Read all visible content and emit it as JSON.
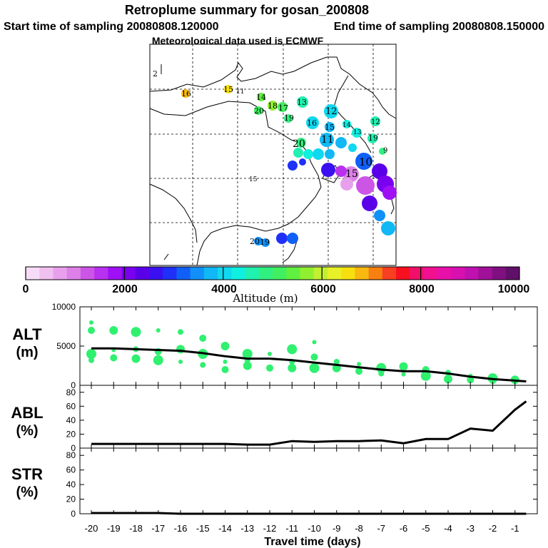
{
  "header": {
    "title": "Retroplume summary for gosan_200808",
    "start_label": "Start time of sampling 20080808.120000",
    "end_label": "End time of sampling 20080808.150000",
    "met_label": "Meteorological data used is ECMWF"
  },
  "colorbar": {
    "label": "Altitude (m)",
    "tick_labels": [
      "0",
      "2000",
      "4000",
      "6000",
      "8000",
      "10000"
    ],
    "min": 0,
    "max": 10000,
    "colors": [
      "#f7dcf7",
      "#f0c0f0",
      "#e8a0ec",
      "#dd80e8",
      "#cc55e6",
      "#b830f0",
      "#9f10f5",
      "#7a00f0",
      "#5a00e8",
      "#3a10f0",
      "#1f30f8",
      "#1060f8",
      "#1090f8",
      "#10b8f5",
      "#10d8f0",
      "#10f0e0",
      "#20f0b0",
      "#30f080",
      "#40f060",
      "#60f040",
      "#90f030",
      "#c0f030",
      "#e8f028",
      "#f8e010",
      "#f8b810",
      "#f88010",
      "#f84020",
      "#f81020",
      "#f0106a",
      "#f01090",
      "#e810a8",
      "#d810b0",
      "#c010b0",
      "#a01098",
      "#801080",
      "#601068"
    ]
  },
  "map_labels": [
    "2",
    "16",
    "15",
    "11",
    "14",
    "13",
    "20",
    "18",
    "17",
    "19",
    "12",
    "16",
    "15",
    "14",
    "13",
    "12",
    "20",
    "11",
    "10",
    "19",
    "9",
    "15",
    "20",
    "19",
    "15"
  ],
  "chart_data": [
    {
      "type": "scatter",
      "panel": "ALT",
      "ylabel": "ALT (m)",
      "ylim": [
        0,
        10000
      ],
      "yticks": [
        0,
        5000,
        10000
      ],
      "series": [
        {
          "name": "mean altitude",
          "x": [
            -20,
            -19,
            -18,
            -17,
            -16,
            -15,
            -14,
            -13,
            -12,
            -11,
            -10,
            -9,
            -8,
            -7,
            -6,
            -5,
            -4,
            -3,
            -2,
            -1,
            -0.5
          ],
          "y": [
            4700,
            4700,
            4600,
            4500,
            4400,
            4100,
            3700,
            3400,
            3400,
            3200,
            2900,
            2600,
            2300,
            2000,
            1800,
            1800,
            1500,
            1100,
            800,
            600,
            500
          ]
        },
        {
          "name": "particle altitudes",
          "x": [
            -20,
            -20,
            -20,
            -20,
            -19,
            -19,
            -19,
            -18,
            -18,
            -18,
            -17,
            -17,
            -17,
            -16,
            -16,
            -16,
            -15,
            -15,
            -15,
            -14,
            -14,
            -14,
            -13,
            -13,
            -13,
            -12,
            -12,
            -11,
            -11,
            -11,
            -10,
            -10,
            -10,
            -9,
            -9,
            -8,
            -8,
            -7,
            -7,
            -6,
            -6,
            -5,
            -5,
            -4,
            -4,
            -3,
            -3,
            -2,
            -2,
            -1,
            -1
          ],
          "y": [
            8000,
            7000,
            4000,
            3200,
            7000,
            4500,
            3500,
            6800,
            4600,
            3400,
            7000,
            4300,
            3200,
            6800,
            4600,
            3000,
            6000,
            4000,
            2600,
            5000,
            3000,
            2000,
            4000,
            3200,
            2500,
            4000,
            2200,
            4600,
            3000,
            2200,
            5500,
            3600,
            2200,
            3000,
            2200,
            2700,
            1800,
            2200,
            1500,
            2400,
            1400,
            2000,
            1200,
            1600,
            800,
            1200,
            700,
            900,
            500,
            700,
            400
          ]
        }
      ]
    },
    {
      "type": "line",
      "panel": "ABL",
      "ylabel": "ABL (%)",
      "ylim": [
        0,
        90
      ],
      "yticks": [
        0,
        20,
        40,
        60,
        80
      ],
      "x": [
        -20,
        -19,
        -18,
        -17,
        -16,
        -15,
        -14,
        -13,
        -12,
        -11,
        -10,
        -9,
        -8,
        -7,
        -6,
        -5,
        -4,
        -3,
        -2,
        -1,
        -0.5
      ],
      "values": [
        6,
        6,
        6,
        6,
        6,
        6,
        6,
        5,
        5,
        10,
        9,
        10,
        10,
        11,
        7,
        13,
        13,
        28,
        25,
        55,
        67
      ]
    },
    {
      "type": "line",
      "panel": "STR",
      "ylabel": "STR (%)",
      "ylim": [
        0,
        90
      ],
      "yticks": [
        0,
        20,
        40,
        60,
        80
      ],
      "x": [
        -20,
        -17,
        -16,
        -0.5
      ],
      "values": [
        1,
        1,
        0,
        0
      ]
    }
  ],
  "xaxis": {
    "label": "Travel time (days)",
    "ticks": [
      -20,
      -19,
      -18,
      -17,
      -16,
      -15,
      -14,
      -13,
      -12,
      -11,
      -10,
      -9,
      -8,
      -7,
      -6,
      -5,
      -4,
      -3,
      -2,
      -1
    ],
    "range": [
      -20,
      0
    ]
  }
}
